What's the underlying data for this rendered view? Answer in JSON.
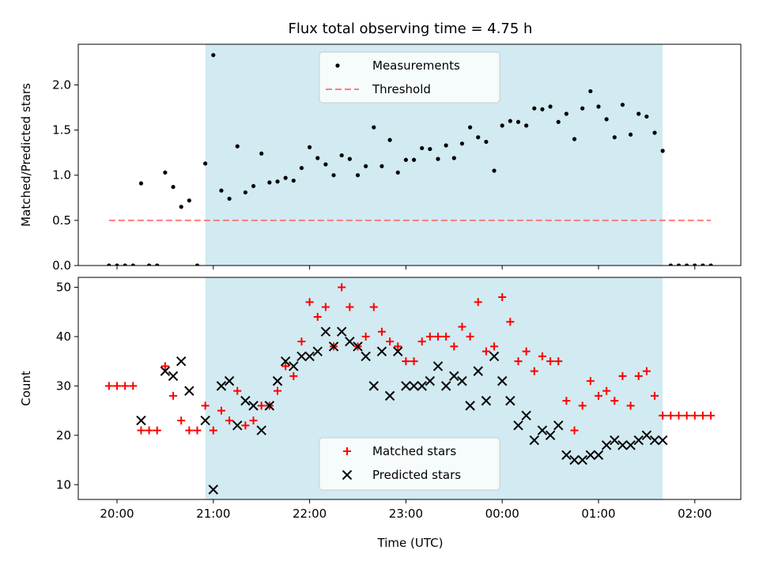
{
  "figure": {
    "title": "Flux total observing time = 4.75 h",
    "xlabel": "Time (UTC)",
    "x_ticks": [
      "20:00",
      "21:00",
      "22:00",
      "23:00",
      "00:00",
      "01:00",
      "02:00"
    ],
    "shaded_interval": [
      "20:55",
      "01:40"
    ],
    "shade_color": "#add8e6"
  },
  "chart_data": [
    {
      "type": "scatter",
      "title": "Flux total observing time = 4.75 h",
      "xlabel": "",
      "ylabel": "Matched/Predicted stars",
      "ylim": [
        0,
        2.45
      ],
      "y_ticks": [
        "0.0",
        "0.5",
        "1.0",
        "1.5",
        "2.0"
      ],
      "legend_position": "top-center",
      "series": [
        {
          "name": "Measurements",
          "color": "#000000",
          "marker": "dot",
          "points": [
            [
              "19:55",
              0
            ],
            [
              "20:00",
              0
            ],
            [
              "20:05",
              0
            ],
            [
              "20:10",
              0
            ],
            [
              "20:15",
              0.91
            ],
            [
              "20:20",
              0
            ],
            [
              "20:25",
              0
            ],
            [
              "20:30",
              1.03
            ],
            [
              "20:35",
              0.87
            ],
            [
              "20:40",
              0.65
            ],
            [
              "20:45",
              0.72
            ],
            [
              "20:50",
              0
            ],
            [
              "20:55",
              1.13
            ],
            [
              "21:00",
              2.33
            ],
            [
              "21:05",
              0.83
            ],
            [
              "21:10",
              0.74
            ],
            [
              "21:15",
              1.32
            ],
            [
              "21:20",
              0.81
            ],
            [
              "21:25",
              0.88
            ],
            [
              "21:30",
              1.24
            ],
            [
              "21:35",
              0.92
            ],
            [
              "21:40",
              0.93
            ],
            [
              "21:45",
              0.97
            ],
            [
              "21:50",
              0.94
            ],
            [
              "21:55",
              1.08
            ],
            [
              "22:00",
              1.31
            ],
            [
              "22:05",
              1.19
            ],
            [
              "22:10",
              1.12
            ],
            [
              "22:15",
              1.0
            ],
            [
              "22:20",
              1.22
            ],
            [
              "22:25",
              1.18
            ],
            [
              "22:30",
              1.0
            ],
            [
              "22:35",
              1.1
            ],
            [
              "22:40",
              1.53
            ],
            [
              "22:45",
              1.1
            ],
            [
              "22:50",
              1.39
            ],
            [
              "22:55",
              1.03
            ],
            [
              "23:00",
              1.17
            ],
            [
              "23:05",
              1.17
            ],
            [
              "23:10",
              1.3
            ],
            [
              "23:15",
              1.29
            ],
            [
              "23:20",
              1.18
            ],
            [
              "23:25",
              1.33
            ],
            [
              "23:30",
              1.19
            ],
            [
              "23:35",
              1.35
            ],
            [
              "23:40",
              1.53
            ],
            [
              "23:45",
              1.42
            ],
            [
              "23:50",
              1.37
            ],
            [
              "23:55",
              1.05
            ],
            [
              "00:00",
              1.55
            ],
            [
              "00:05",
              1.6
            ],
            [
              "00:10",
              1.59
            ],
            [
              "00:15",
              1.55
            ],
            [
              "00:20",
              1.74
            ],
            [
              "00:25",
              1.73
            ],
            [
              "00:30",
              1.76
            ],
            [
              "00:35",
              1.59
            ],
            [
              "00:40",
              1.68
            ],
            [
              "00:45",
              1.4
            ],
            [
              "00:50",
              1.74
            ],
            [
              "00:55",
              1.93
            ],
            [
              "01:00",
              1.76
            ],
            [
              "01:05",
              1.62
            ],
            [
              "01:10",
              1.42
            ],
            [
              "01:15",
              1.78
            ],
            [
              "01:20",
              1.45
            ],
            [
              "01:25",
              1.68
            ],
            [
              "01:30",
              1.65
            ],
            [
              "01:35",
              1.47
            ],
            [
              "01:40",
              1.27
            ],
            [
              "01:45",
              0
            ],
            [
              "01:50",
              0
            ],
            [
              "01:55",
              0
            ],
            [
              "02:00",
              0
            ],
            [
              "02:05",
              0
            ],
            [
              "02:10",
              0
            ]
          ]
        },
        {
          "name": "Threshold",
          "color": "#ff7070",
          "style": "dashed",
          "points": [
            [
              "19:55",
              0.5
            ],
            [
              "02:10",
              0.5
            ]
          ]
        }
      ]
    },
    {
      "type": "scatter",
      "xlabel": "Time (UTC)",
      "ylabel": "Count",
      "ylim": [
        7,
        52
      ],
      "y_ticks": [
        "10",
        "20",
        "30",
        "40",
        "50"
      ],
      "legend_position": "bottom-center",
      "series": [
        {
          "name": "Matched stars",
          "color": "#ff0000",
          "marker": "plus",
          "points": [
            [
              "19:55",
              30
            ],
            [
              "20:00",
              30
            ],
            [
              "20:05",
              30
            ],
            [
              "20:10",
              30
            ],
            [
              "20:15",
              21
            ],
            [
              "20:20",
              21
            ],
            [
              "20:25",
              21
            ],
            [
              "20:30",
              34
            ],
            [
              "20:35",
              28
            ],
            [
              "20:40",
              23
            ],
            [
              "20:45",
              21
            ],
            [
              "20:50",
              21
            ],
            [
              "20:55",
              26
            ],
            [
              "21:00",
              21
            ],
            [
              "21:05",
              25
            ],
            [
              "21:10",
              23
            ],
            [
              "21:15",
              29
            ],
            [
              "21:20",
              22
            ],
            [
              "21:25",
              23
            ],
            [
              "21:30",
              26
            ],
            [
              "21:35",
              26
            ],
            [
              "21:40",
              29
            ],
            [
              "21:45",
              34
            ],
            [
              "21:50",
              32
            ],
            [
              "21:55",
              39
            ],
            [
              "22:00",
              47
            ],
            [
              "22:05",
              44
            ],
            [
              "22:10",
              46
            ],
            [
              "22:15",
              38
            ],
            [
              "22:20",
              50
            ],
            [
              "22:25",
              46
            ],
            [
              "22:30",
              38
            ],
            [
              "22:35",
              40
            ],
            [
              "22:40",
              46
            ],
            [
              "22:45",
              41
            ],
            [
              "22:50",
              39
            ],
            [
              "22:55",
              38
            ],
            [
              "23:00",
              35
            ],
            [
              "23:05",
              35
            ],
            [
              "23:10",
              39
            ],
            [
              "23:15",
              40
            ],
            [
              "23:20",
              40
            ],
            [
              "23:25",
              40
            ],
            [
              "23:30",
              38
            ],
            [
              "23:35",
              42
            ],
            [
              "23:40",
              40
            ],
            [
              "23:45",
              47
            ],
            [
              "23:50",
              37
            ],
            [
              "23:55",
              38
            ],
            [
              "00:00",
              48
            ],
            [
              "00:05",
              43
            ],
            [
              "00:10",
              35
            ],
            [
              "00:15",
              37
            ],
            [
              "00:20",
              33
            ],
            [
              "00:25",
              36
            ],
            [
              "00:30",
              35
            ],
            [
              "00:35",
              35
            ],
            [
              "00:40",
              27
            ],
            [
              "00:45",
              21
            ],
            [
              "00:50",
              26
            ],
            [
              "00:55",
              31
            ],
            [
              "01:00",
              28
            ],
            [
              "01:05",
              29
            ],
            [
              "01:10",
              27
            ],
            [
              "01:15",
              32
            ],
            [
              "01:20",
              26
            ],
            [
              "01:25",
              32
            ],
            [
              "01:30",
              33
            ],
            [
              "01:35",
              28
            ],
            [
              "01:40",
              24
            ],
            [
              "01:45",
              24
            ],
            [
              "01:50",
              24
            ],
            [
              "01:55",
              24
            ],
            [
              "02:00",
              24
            ],
            [
              "02:05",
              24
            ],
            [
              "02:10",
              24
            ]
          ]
        },
        {
          "name": "Predicted stars",
          "color": "#000000",
          "marker": "x",
          "points": [
            [
              "20:15",
              23
            ],
            [
              "20:30",
              33
            ],
            [
              "20:35",
              32
            ],
            [
              "20:40",
              35
            ],
            [
              "20:45",
              29
            ],
            [
              "20:55",
              23
            ],
            [
              "21:00",
              9
            ],
            [
              "21:05",
              30
            ],
            [
              "21:10",
              31
            ],
            [
              "21:15",
              22
            ],
            [
              "21:20",
              27
            ],
            [
              "21:25",
              26
            ],
            [
              "21:30",
              21
            ],
            [
              "21:35",
              26
            ],
            [
              "21:40",
              31
            ],
            [
              "21:45",
              35
            ],
            [
              "21:50",
              34
            ],
            [
              "21:55",
              36
            ],
            [
              "22:00",
              36
            ],
            [
              "22:05",
              37
            ],
            [
              "22:10",
              41
            ],
            [
              "22:15",
              38
            ],
            [
              "22:20",
              41
            ],
            [
              "22:25",
              39
            ],
            [
              "22:30",
              38
            ],
            [
              "22:35",
              36
            ],
            [
              "22:40",
              30
            ],
            [
              "22:45",
              37
            ],
            [
              "22:50",
              28
            ],
            [
              "22:55",
              37
            ],
            [
              "23:00",
              30
            ],
            [
              "23:05",
              30
            ],
            [
              "23:10",
              30
            ],
            [
              "23:15",
              31
            ],
            [
              "23:20",
              34
            ],
            [
              "23:25",
              30
            ],
            [
              "23:30",
              32
            ],
            [
              "23:35",
              31
            ],
            [
              "23:40",
              26
            ],
            [
              "23:45",
              33
            ],
            [
              "23:50",
              27
            ],
            [
              "23:55",
              36
            ],
            [
              "00:00",
              31
            ],
            [
              "00:05",
              27
            ],
            [
              "00:10",
              22
            ],
            [
              "00:15",
              24
            ],
            [
              "00:20",
              19
            ],
            [
              "00:25",
              21
            ],
            [
              "00:30",
              20
            ],
            [
              "00:35",
              22
            ],
            [
              "00:40",
              16
            ],
            [
              "00:45",
              15
            ],
            [
              "00:50",
              15
            ],
            [
              "00:55",
              16
            ],
            [
              "01:00",
              16
            ],
            [
              "01:05",
              18
            ],
            [
              "01:10",
              19
            ],
            [
              "01:15",
              18
            ],
            [
              "01:20",
              18
            ],
            [
              "01:25",
              19
            ],
            [
              "01:30",
              20
            ],
            [
              "01:35",
              19
            ],
            [
              "01:40",
              19
            ]
          ]
        }
      ]
    }
  ]
}
